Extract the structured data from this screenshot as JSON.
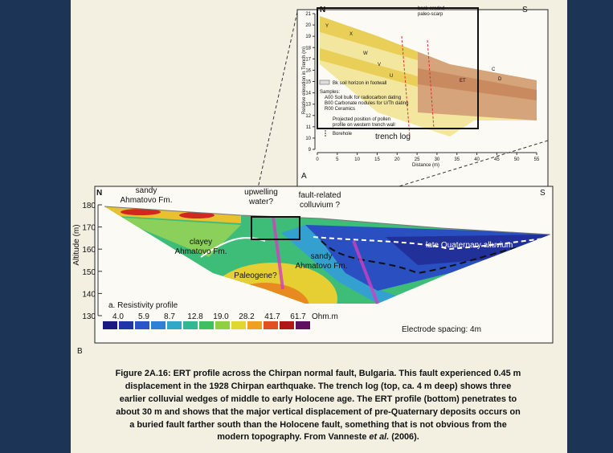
{
  "trench_log": {
    "label": "A",
    "title": "trench log",
    "north": "N",
    "south": "S",
    "y_axis_label": "Relative elevation in Trench (m)",
    "x_axis_label": "Distance (m)",
    "yticks": [
      9,
      10,
      11,
      12,
      13,
      14,
      15,
      16,
      17,
      18,
      19,
      20,
      21
    ],
    "xticks": [
      0,
      5,
      10,
      15,
      20,
      25,
      30,
      35,
      40,
      45,
      50,
      55
    ],
    "scarp_note": [
      "back-eroded",
      "paleo-scarp"
    ],
    "units": [
      "X",
      "W",
      "V",
      "U",
      "Y",
      "ET",
      "D",
      "C"
    ],
    "legend_bk": "Bk soil horizon in footwall",
    "legend_samples": [
      "Samples:",
      "A00 Soil bulk for radiocarbon dating",
      "B00 Carbonate nodules for U/Th dating",
      "R00 Ceramics"
    ],
    "legend_pollen": [
      "Projected position of pollen",
      "profile on western trench wall"
    ],
    "legend_borehole": "Borehole"
  },
  "ert_profile": {
    "label": "B",
    "panel_title": "a. Resistivity profile",
    "north": "N",
    "south": "S",
    "y_axis_label": "Altitude (m)",
    "yticks": [
      130,
      140,
      150,
      160,
      170,
      180
    ],
    "sandy_top": [
      "sandy",
      "Ahmatovo Fm."
    ],
    "upwelling": [
      "upwelling",
      "water?"
    ],
    "colluvium": [
      "fault-related",
      "colluvium ?"
    ],
    "clayey": [
      "clayey",
      "Ahmatovo Fm."
    ],
    "alluvium": "late Quaternary alluvium",
    "sandy_low": [
      "sandy",
      "Ahmatovo Fm."
    ],
    "paleogene": "Paleogene?",
    "scale_labels": [
      "4.0",
      "5.9",
      "8.7",
      "12.8",
      "19.0",
      "28.2",
      "41.7",
      "61.7"
    ],
    "scale_unit": "Ohm.m",
    "electrode_note": "Electrode spacing: 4m"
  },
  "caption": {
    "lines": [
      "Figure 2A.16: ERT profile across the Chirpan normal fault, Bulgaria. This fault experienced 0.45 m",
      "displacement in the 1928 Chirpan earthquake. The trench log (top, ca. 4 m deep) shows three",
      "earlier colluvial wedges of middle to early Holocene age. The ERT profile (bottom) penetrates to",
      "about 30 m and shows that the major vertical displacement of pre-Quaternary deposits occurs on",
      "a buried fault farther south than the Holocene fault, something that is not obvious from the"
    ],
    "last_line": [
      "modern topography. From Vanneste ",
      "et al.",
      " (2006)."
    ]
  }
}
